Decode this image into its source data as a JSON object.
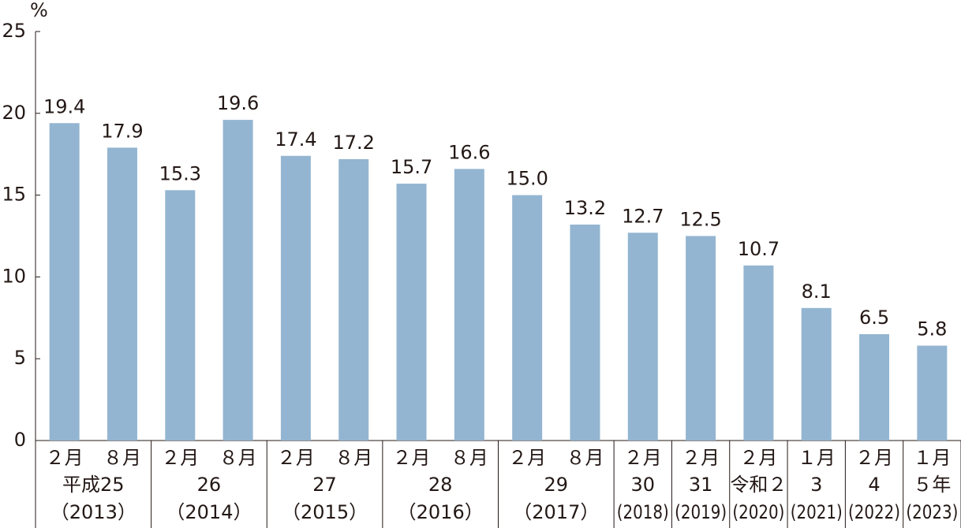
{
  "chart_data": {
    "type": "bar",
    "y_unit": "%",
    "color": "#93b5d1",
    "values": [
      19.4,
      17.9,
      15.3,
      19.6,
      17.4,
      17.2,
      15.7,
      16.6,
      15.0,
      13.2,
      12.7,
      12.5,
      10.7,
      8.1,
      6.5,
      5.8
    ],
    "value_labels": [
      "19.4",
      "17.9",
      "15.3",
      "19.6",
      "17.4",
      "17.2",
      "15.7",
      "16.6",
      "15.0",
      "13.2",
      "12.7",
      "12.5",
      "10.7",
      "8.1",
      "6.5",
      "5.8"
    ],
    "groups": [
      {
        "name": "平成25",
        "sub": "（2013）",
        "months": [
          "２月",
          "８月"
        ]
      },
      {
        "name": "26",
        "sub": "（2014）",
        "months": [
          "２月",
          "８月"
        ]
      },
      {
        "name": "27",
        "sub": "（2015）",
        "months": [
          "２月",
          "８月"
        ]
      },
      {
        "name": "28",
        "sub": "（2016）",
        "months": [
          "２月",
          "８月"
        ]
      },
      {
        "name": "29",
        "sub": "（2017）",
        "months": [
          "２月",
          "８月"
        ]
      },
      {
        "name": "30",
        "sub": "(2018)",
        "months": [
          "２月"
        ]
      },
      {
        "name": "31",
        "sub": "(2019)",
        "months": [
          "２月"
        ]
      },
      {
        "name": "令和２",
        "sub": "(2020)",
        "months": [
          "２月"
        ]
      },
      {
        "name": "3",
        "sub": "(2021)",
        "months": [
          "１月"
        ]
      },
      {
        "name": "4",
        "sub": "(2022)",
        "months": [
          "２月"
        ]
      },
      {
        "name": "５年",
        "sub": "(2023)",
        "months": [
          "１月"
        ]
      }
    ],
    "ylim": [
      0,
      25
    ],
    "yticks": [
      0,
      5,
      10,
      15,
      20,
      25
    ]
  }
}
